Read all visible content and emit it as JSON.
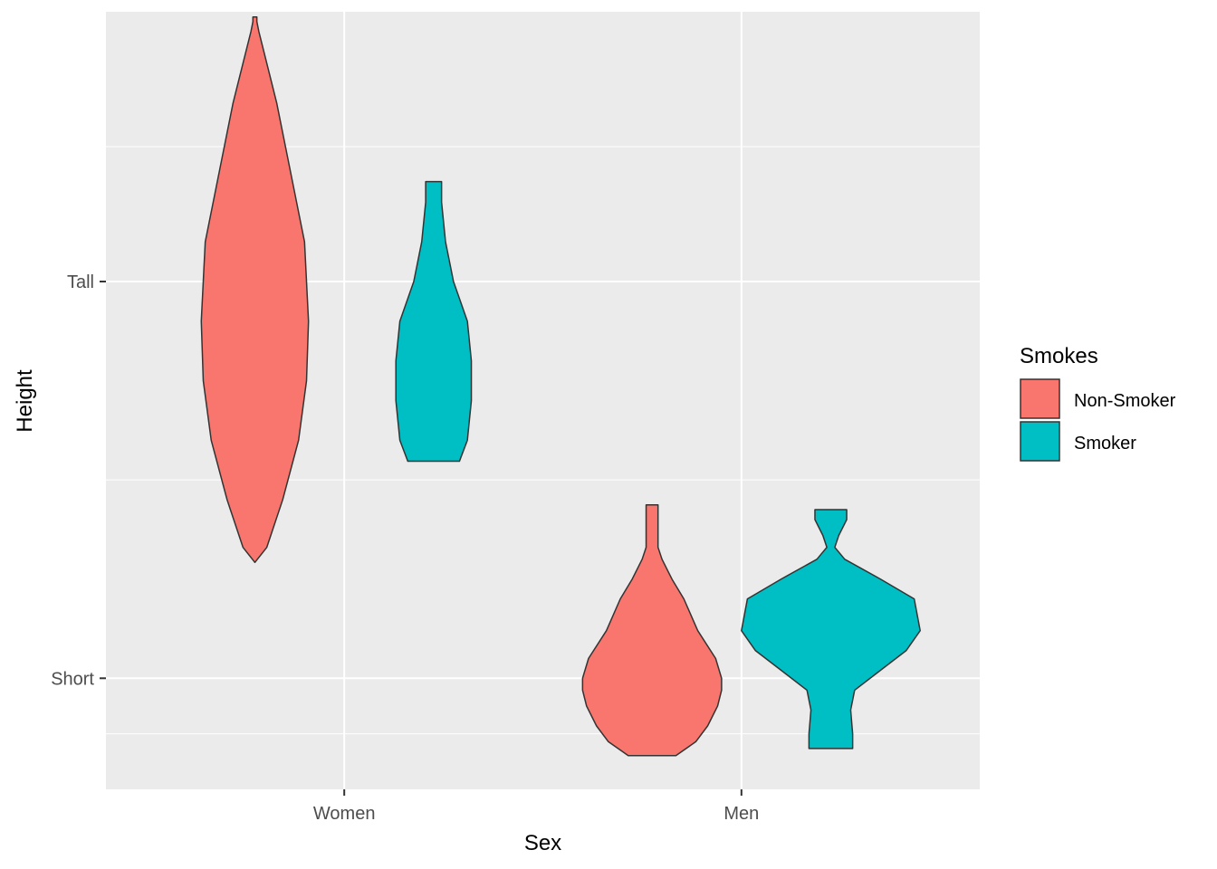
{
  "chart_data": {
    "type": "violin",
    "xlabel": "Sex",
    "ylabel": "Height",
    "categories": [
      "Women",
      "Men"
    ],
    "y_ticks": [
      {
        "label": "Short",
        "value": 1
      },
      {
        "label": "Tall",
        "value": 2
      }
    ],
    "ylim": [
      0.72,
      2.68
    ],
    "grid": true,
    "legend": {
      "title": "Smokes",
      "placement": "right",
      "entries": [
        {
          "label": "Non-Smoker",
          "color": "#F8766D"
        },
        {
          "label": "Smoker",
          "color": "#00BFC4"
        }
      ]
    },
    "series": [
      {
        "name": "Non-Smoker",
        "color": "#F8766D",
        "violins": [
          {
            "category": "Women",
            "profile": [
              [
                1.292,
                0.0
              ],
              [
                1.33,
                0.06
              ],
              [
                1.45,
                0.14
              ],
              [
                1.6,
                0.22
              ],
              [
                1.75,
                0.26
              ],
              [
                1.9,
                0.27
              ],
              [
                2.0,
                0.26
              ],
              [
                2.1,
                0.25
              ],
              [
                2.3,
                0.17
              ],
              [
                2.45,
                0.11
              ],
              [
                2.55,
                0.06
              ],
              [
                2.63,
                0.02
              ],
              [
                2.655,
                0.01
              ],
              [
                2.667,
                0.01
              ]
            ]
          },
          {
            "category": "Men",
            "profile": [
              [
                0.805,
                0.12
              ],
              [
                0.84,
                0.22
              ],
              [
                0.88,
                0.28
              ],
              [
                0.93,
                0.33
              ],
              [
                0.97,
                0.35
              ],
              [
                1.0,
                0.35
              ],
              [
                1.05,
                0.32
              ],
              [
                1.12,
                0.23
              ],
              [
                1.2,
                0.16
              ],
              [
                1.25,
                0.1
              ],
              [
                1.3,
                0.05
              ],
              [
                1.33,
                0.03
              ],
              [
                1.36,
                0.03
              ],
              [
                1.437,
                0.03
              ]
            ]
          }
        ]
      },
      {
        "name": "Smoker",
        "color": "#00BFC4",
        "violins": [
          {
            "category": "Women",
            "profile": [
              [
                1.547,
                0.13
              ],
              [
                1.6,
                0.17
              ],
              [
                1.7,
                0.19
              ],
              [
                1.8,
                0.19
              ],
              [
                1.9,
                0.17
              ],
              [
                2.0,
                0.1
              ],
              [
                2.1,
                0.06
              ],
              [
                2.2,
                0.04
              ],
              [
                2.252,
                0.04
              ]
            ]
          },
          {
            "category": "Men",
            "profile": [
              [
                0.823,
                0.11
              ],
              [
                0.86,
                0.11
              ],
              [
                0.92,
                0.1
              ],
              [
                0.97,
                0.12
              ],
              [
                1.02,
                0.25
              ],
              [
                1.07,
                0.38
              ],
              [
                1.12,
                0.45
              ],
              [
                1.2,
                0.42
              ],
              [
                1.25,
                0.25
              ],
              [
                1.3,
                0.07
              ],
              [
                1.33,
                0.02
              ],
              [
                1.36,
                0.04
              ],
              [
                1.4,
                0.08
              ],
              [
                1.425,
                0.08
              ]
            ]
          }
        ]
      }
    ]
  }
}
